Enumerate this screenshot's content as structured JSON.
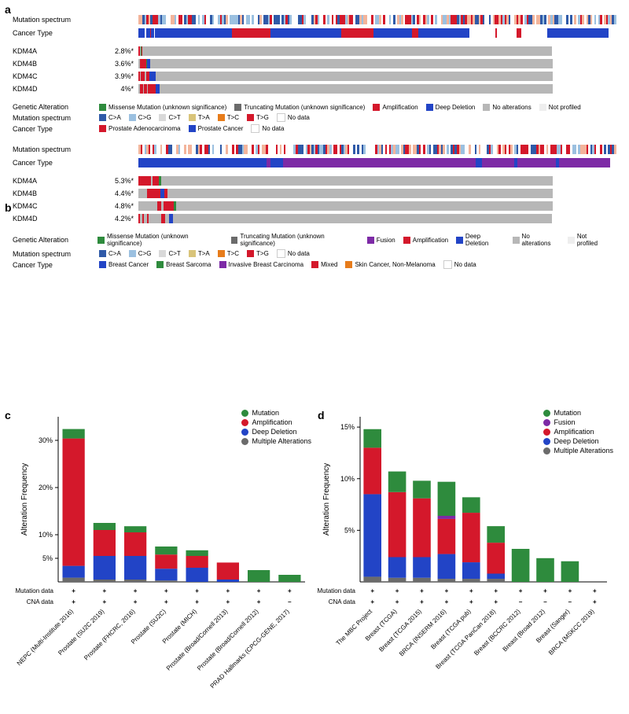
{
  "colors": {
    "green": "#2e8b3d",
    "red": "#d4182b",
    "blue": "#2244c6",
    "grey": "#b7b7b7",
    "ltgrey": "#d9d9d9",
    "purple": "#7d2aa6",
    "darkgrey": "#6b6b6b",
    "orange": "#e77c1b",
    "tan": "#d9c47a",
    "cyan": "#7db6d1"
  },
  "panelA": {
    "label": "a",
    "spectrum_label": "Mutation spectrum",
    "cancer_type_label": "Cancer Type",
    "genes": [
      {
        "name": "KDM4A",
        "pct": "2.8%*",
        "segs": [
          [
            "red",
            3
          ],
          [
            "grey",
            1
          ],
          [
            "green",
            1
          ],
          [
            "red",
            1
          ],
          [
            "grey",
            640
          ],
          [
            "white",
            100
          ]
        ]
      },
      {
        "name": "KDM4B",
        "pct": "3.6%*",
        "segs": [
          [
            "grey",
            2
          ],
          [
            "red",
            10
          ],
          [
            "green",
            2
          ],
          [
            "blue",
            5
          ],
          [
            "grey",
            627
          ],
          [
            "white",
            100
          ]
        ]
      },
      {
        "name": "KDM4C",
        "pct": "3.9%*",
        "segs": [
          [
            "red",
            2
          ],
          [
            "grey",
            2
          ],
          [
            "red",
            6
          ],
          [
            "grey",
            2
          ],
          [
            "red",
            5
          ],
          [
            "blue",
            10
          ],
          [
            "grey",
            619
          ],
          [
            "white",
            100
          ]
        ]
      },
      {
        "name": "KDM4D",
        "pct": "4%*",
        "segs": [
          [
            "grey",
            3
          ],
          [
            "red",
            4
          ],
          [
            "grey",
            2
          ],
          [
            "red",
            4
          ],
          [
            "grey",
            2
          ],
          [
            "red",
            12
          ],
          [
            "blue",
            6
          ],
          [
            "grey",
            613
          ],
          [
            "white",
            100
          ]
        ]
      }
    ],
    "cancer_type_segs": [
      [
        "blue",
        10
      ],
      [
        "white",
        2
      ],
      [
        "blue",
        6
      ],
      [
        "red",
        2
      ],
      [
        "blue",
        4
      ],
      [
        "white",
        2
      ],
      [
        "blue",
        120
      ],
      [
        "red",
        60
      ],
      [
        "blue",
        110
      ],
      [
        "red",
        50
      ],
      [
        "blue",
        60
      ],
      [
        "red",
        10
      ],
      [
        "blue",
        80
      ],
      [
        "white",
        40
      ],
      [
        "red",
        3
      ],
      [
        "white",
        30
      ],
      [
        "red",
        8
      ],
      [
        "white",
        40
      ],
      [
        "blue",
        96
      ],
      [
        "white",
        12
      ]
    ],
    "spectrum_colors": [
      "#2f5aa8",
      "#9bc0e0",
      "#ffffff",
      "#f3b49b",
      "#d4182b"
    ],
    "legends": {
      "genetic": {
        "label": "Genetic Alteration",
        "items": [
          {
            "c": "#2e8b3d",
            "t": "Missense Mutation (unknown significance)"
          },
          {
            "c": "#6b6b6b",
            "t": "Truncating Mutation (unknown significance)"
          },
          {
            "c": "#d4182b",
            "t": "Amplification"
          },
          {
            "c": "#2244c6",
            "t": "Deep Deletion"
          },
          {
            "c": "#b7b7b7",
            "t": "No alterations"
          },
          {
            "c": "#eeeeee",
            "t": "Not profiled"
          }
        ]
      },
      "spectrum": {
        "label": "Mutation spectrum",
        "items": [
          {
            "c": "#2f5aa8",
            "t": "C>A"
          },
          {
            "c": "#9bc0e0",
            "t": "C>G"
          },
          {
            "c": "#d9d9d9",
            "t": "C>T"
          },
          {
            "c": "#d9c47a",
            "t": "T>A"
          },
          {
            "c": "#e77c1b",
            "t": "T>C"
          },
          {
            "c": "#d4182b",
            "t": "T>G"
          },
          {
            "c": "#ffffff",
            "t": "No data"
          }
        ]
      },
      "cancer": {
        "label": "Cancer Type",
        "items": [
          {
            "c": "#d4182b",
            "t": "Prostate Adenocarcinoma"
          },
          {
            "c": "#2244c6",
            "t": "Prostate Cancer"
          },
          {
            "c": "#ffffff",
            "t": "No data"
          }
        ]
      }
    }
  },
  "panelB": {
    "label": "b",
    "genes": [
      {
        "name": "KDM4A",
        "pct": "5.3%*",
        "segs": [
          [
            "red",
            20
          ],
          [
            "grey",
            2
          ],
          [
            "red",
            10
          ],
          [
            "green",
            4
          ],
          [
            "grey",
            610
          ],
          [
            "white",
            100
          ]
        ]
      },
      {
        "name": "KDM4B",
        "pct": "4.4%*",
        "segs": [
          [
            "grey",
            14
          ],
          [
            "red",
            20
          ],
          [
            "blue",
            6
          ],
          [
            "red",
            6
          ],
          [
            "grey",
            600
          ],
          [
            "white",
            100
          ]
        ]
      },
      {
        "name": "KDM4C",
        "pct": "4.8%*",
        "segs": [
          [
            "grey",
            30
          ],
          [
            "red",
            5
          ],
          [
            "grey",
            4
          ],
          [
            "red",
            16
          ],
          [
            "green",
            4
          ],
          [
            "grey",
            587
          ],
          [
            "white",
            100
          ]
        ]
      },
      {
        "name": "KDM4D",
        "pct": "4.2%*",
        "segs": [
          [
            "red",
            3
          ],
          [
            "grey",
            3
          ],
          [
            "red",
            3
          ],
          [
            "grey",
            4
          ],
          [
            "red",
            3
          ],
          [
            "grey",
            20
          ],
          [
            "red",
            6
          ],
          [
            "grey",
            6
          ],
          [
            "blue",
            6
          ],
          [
            "grey",
            592
          ],
          [
            "white",
            100
          ]
        ]
      }
    ],
    "cancer_type_segs": [
      [
        "blue",
        200
      ],
      [
        "purple",
        6
      ],
      [
        "blue",
        20
      ],
      [
        "purple",
        300
      ],
      [
        "blue",
        10
      ],
      [
        "purple",
        50
      ],
      [
        "blue",
        6
      ],
      [
        "purple",
        60
      ],
      [
        "blue",
        4
      ],
      [
        "purple",
        80
      ],
      [
        "white",
        10
      ]
    ],
    "legends": {
      "genetic": {
        "label": "Genetic Alteration",
        "items": [
          {
            "c": "#2e8b3d",
            "t": "Missense Mutation (unknown significance)"
          },
          {
            "c": "#6b6b6b",
            "t": "Truncating Mutation (unknown significance)"
          },
          {
            "c": "#7d2aa6",
            "t": "Fusion"
          },
          {
            "c": "#d4182b",
            "t": "Amplification"
          },
          {
            "c": "#2244c6",
            "t": "Deep Deletion"
          },
          {
            "c": "#b7b7b7",
            "t": "No alterations"
          },
          {
            "c": "#eeeeee",
            "t": "Not profiled"
          }
        ]
      },
      "spectrum": {
        "label": "Mutation spectrum",
        "items": [
          {
            "c": "#2f5aa8",
            "t": "C>A"
          },
          {
            "c": "#9bc0e0",
            "t": "C>G"
          },
          {
            "c": "#d9d9d9",
            "t": "C>T"
          },
          {
            "c": "#d9c47a",
            "t": "T>A"
          },
          {
            "c": "#e77c1b",
            "t": "T>C"
          },
          {
            "c": "#d4182b",
            "t": "T>G"
          },
          {
            "c": "#ffffff",
            "t": "No data"
          }
        ]
      },
      "cancer": {
        "label": "Cancer Type",
        "items": [
          {
            "c": "#2244c6",
            "t": "Breast Cancer"
          },
          {
            "c": "#2e8b3d",
            "t": "Breast Sarcoma"
          },
          {
            "c": "#7d2aa6",
            "t": "Invasive Breast Carcinoma"
          },
          {
            "c": "#d4182b",
            "t": "Mixed"
          },
          {
            "c": "#e77c1b",
            "t": "Skin Cancer, Non-Melanoma"
          },
          {
            "c": "#ffffff",
            "t": "No data"
          }
        ]
      }
    }
  },
  "panelC": {
    "label": "c",
    "ylabel": "Alteration Frequency",
    "ymax": 35,
    "yticks": [
      5,
      10,
      20,
      30
    ],
    "yticklabels": [
      "5%",
      "10%",
      "20%",
      "30%"
    ],
    "series_colors": {
      "Mutation": "#2e8b3d",
      "Amplification": "#d4182b",
      "Deep Deletion": "#2244c6",
      "Multiple Alterations": "#6b6b6b"
    },
    "legend_order": [
      "Mutation",
      "Amplification",
      "Deep Deletion",
      "Multiple Alterations"
    ],
    "bars": [
      {
        "x": "NEPC (Multi-Institute 2016)",
        "mut": "+",
        "cna": "+",
        "stack": {
          "Multiple Alterations": 0.9,
          "Deep Deletion": 2.5,
          "Amplification": 27,
          "Mutation": 2
        }
      },
      {
        "x": "Prostate (SU2C 2019)",
        "mut": "+",
        "cna": "+",
        "stack": {
          "Multiple Alterations": 0.5,
          "Deep Deletion": 5,
          "Amplification": 5.5,
          "Mutation": 1.5
        }
      },
      {
        "x": "Prostate (FHCRC, 2016)",
        "mut": "+",
        "cna": "+",
        "stack": {
          "Multiple Alterations": 0.5,
          "Deep Deletion": 5,
          "Amplification": 5,
          "Mutation": 1.3
        }
      },
      {
        "x": "Prostate (SU2C)",
        "mut": "+",
        "cna": "+",
        "stack": {
          "Multiple Alterations": 0.3,
          "Deep Deletion": 2.5,
          "Amplification": 3,
          "Mutation": 1.7
        }
      },
      {
        "x": "Prostate (MICH)",
        "mut": "+",
        "cna": "+",
        "stack": {
          "Deep Deletion": 3,
          "Amplification": 2.5,
          "Mutation": 1.2
        }
      },
      {
        "x": "Prostate (Broad/Cornell 2013)",
        "mut": "+",
        "cna": "+",
        "stack": {
          "Deep Deletion": 0.5,
          "Amplification": 3.6
        }
      },
      {
        "x": "Prostate (Broad/Cornell 2012)",
        "mut": "+",
        "cna": "+",
        "stack": {
          "Mutation": 2.5
        }
      },
      {
        "x": "PRAD Hallmarks (CPCG-GENE, 2017)",
        "mut": "+",
        "cna": "–",
        "stack": {
          "Mutation": 1.5
        }
      }
    ]
  },
  "panelD": {
    "label": "d",
    "ylabel": "Alteration Frequency",
    "ymax": 16,
    "yticks": [
      5,
      10,
      15
    ],
    "yticklabels": [
      "5%",
      "10%",
      "15%"
    ],
    "series_colors": {
      "Mutation": "#2e8b3d",
      "Fusion": "#7d2aa6",
      "Amplification": "#d4182b",
      "Deep Deletion": "#2244c6",
      "Multiple Alterations": "#6b6b6b"
    },
    "legend_order": [
      "Mutation",
      "Fusion",
      "Amplification",
      "Deep Deletion",
      "Multiple Alterations"
    ],
    "bars": [
      {
        "x": "The MBC Project",
        "mut": "+",
        "cna": "+",
        "stack": {
          "Multiple Alterations": 0.5,
          "Deep Deletion": 8,
          "Amplification": 4.5,
          "Mutation": 1.8
        }
      },
      {
        "x": "Breast (TCGA)",
        "mut": "+",
        "cna": "+",
        "stack": {
          "Multiple Alterations": 0.4,
          "Deep Deletion": 2,
          "Amplification": 6.3,
          "Mutation": 2
        }
      },
      {
        "x": "Breast (TCGA 2015)",
        "mut": "+",
        "cna": "+",
        "stack": {
          "Multiple Alterations": 0.4,
          "Deep Deletion": 2,
          "Amplification": 5.7,
          "Mutation": 1.7
        }
      },
      {
        "x": "BRCA (INSERM 2016)",
        "mut": "+",
        "cna": "+",
        "stack": {
          "Multiple Alterations": 0.3,
          "Deep Deletion": 2.4,
          "Amplification": 3.4,
          "Fusion": 0.3,
          "Mutation": 3.3
        }
      },
      {
        "x": "Breast (TCGA pub)",
        "mut": "+",
        "cna": "+",
        "stack": {
          "Multiple Alterations": 0.3,
          "Deep Deletion": 1.6,
          "Amplification": 4.8,
          "Mutation": 1.5
        }
      },
      {
        "x": "Breast (TCGA PanCan 2018)",
        "mut": "+",
        "cna": "+",
        "stack": {
          "Multiple Alterations": 0.3,
          "Deep Deletion": 0.5,
          "Amplification": 3,
          "Mutation": 1.6
        }
      },
      {
        "x": "Breast (BCCRC 2012)",
        "mut": "+",
        "cna": "–",
        "stack": {
          "Mutation": 3.2
        }
      },
      {
        "x": "Breast (Broad 2012)",
        "mut": "+",
        "cna": "–",
        "stack": {
          "Mutation": 2.3
        }
      },
      {
        "x": "Breast (Sanger)",
        "mut": "+",
        "cna": "–",
        "stack": {
          "Mutation": 2
        }
      },
      {
        "x": "BRCA (MSKCC 2019)",
        "mut": "+",
        "cna": "+",
        "stack": {}
      }
    ]
  },
  "data_row_labels": {
    "mut": "Mutation data",
    "cna": "CNA data"
  }
}
